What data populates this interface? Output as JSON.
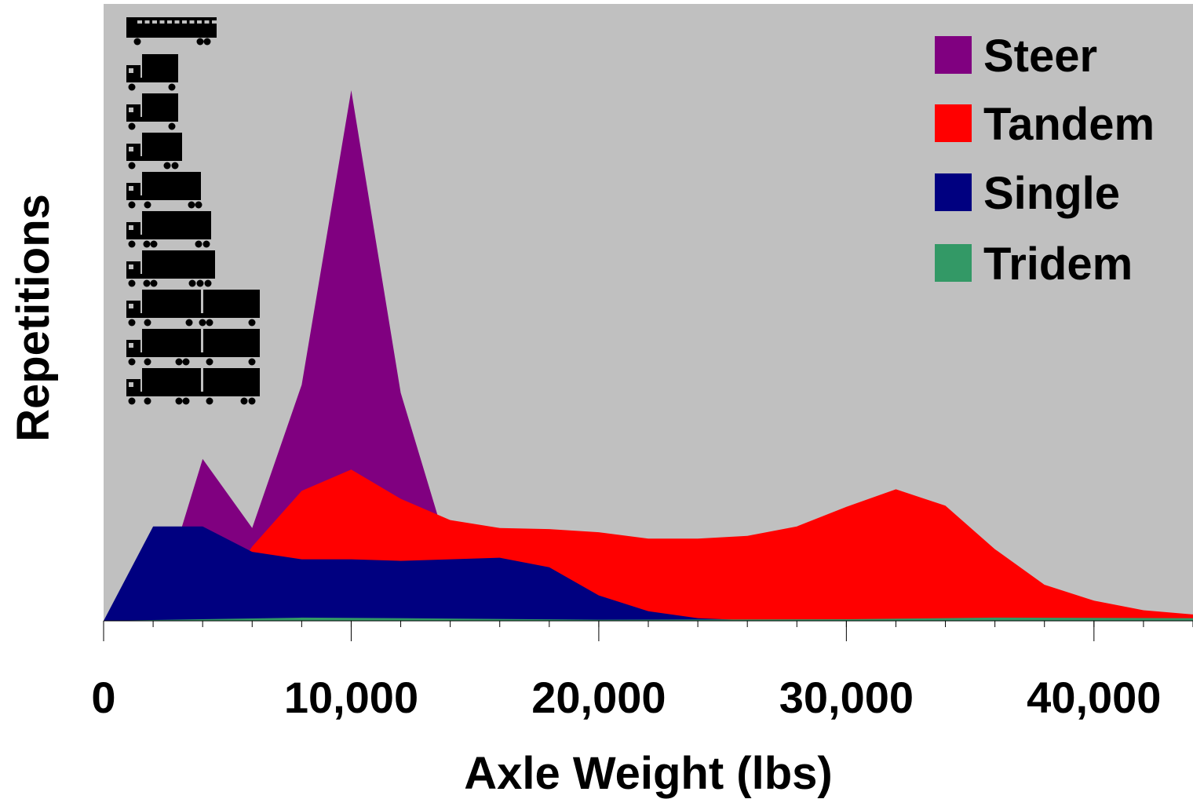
{
  "chart_data": {
    "type": "area",
    "title": "",
    "xlabel": "Axle Weight (lbs)",
    "ylabel": "Repetitions",
    "xlim": [
      0,
      44000
    ],
    "ylim": [
      0,
      100
    ],
    "x_ticks": [
      0,
      10000,
      20000,
      30000,
      40000
    ],
    "x_tick_labels": [
      "0",
      "10,000",
      "20,000",
      "30,000",
      "40,000"
    ],
    "y_axis_tick_labels_shown": false,
    "grid": false,
    "plot_background": "#c0c0c0",
    "legend": {
      "position": "top-right",
      "entries": [
        "Steer",
        "Tandem",
        "Single",
        "Tridem"
      ]
    },
    "vehicle_class_icons": [
      "bus-icon",
      "two-axle-truck-icon",
      "two-axle-truck-icon",
      "three-axle-truck-icon",
      "tractor-trailer-icon",
      "tractor-trailer-icon",
      "tractor-trailer-icon",
      "double-trailer-icon",
      "double-trailer-icon",
      "double-trailer-icon"
    ],
    "series": [
      {
        "name": "Steer",
        "color": "#800080",
        "points": [
          [
            2000,
            0
          ],
          [
            4000,
            30.5
          ],
          [
            6000,
            17.5
          ],
          [
            8000,
            44.5
          ],
          [
            10000,
            100
          ],
          [
            12000,
            43
          ],
          [
            14000,
            12
          ],
          [
            16000,
            3
          ],
          [
            18000,
            0
          ]
        ]
      },
      {
        "name": "Tandem",
        "color": "#ff0000",
        "points": [
          [
            4000,
            0
          ],
          [
            6000,
            14
          ],
          [
            8000,
            24.5
          ],
          [
            10000,
            28.5
          ],
          [
            12000,
            23
          ],
          [
            14000,
            19
          ],
          [
            16000,
            17.5
          ],
          [
            18000,
            17.3
          ],
          [
            20000,
            16.7
          ],
          [
            22000,
            15.5
          ],
          [
            24000,
            15.5
          ],
          [
            26000,
            16
          ],
          [
            28000,
            17.8
          ],
          [
            30000,
            21.5
          ],
          [
            32000,
            24.8
          ],
          [
            34000,
            21.7
          ],
          [
            36000,
            13.5
          ],
          [
            38000,
            6.8
          ],
          [
            40000,
            3.8
          ],
          [
            42000,
            2
          ],
          [
            44000,
            1.2
          ]
        ]
      },
      {
        "name": "Single",
        "color": "#000080",
        "points": [
          [
            0,
            0
          ],
          [
            2000,
            17.8
          ],
          [
            4000,
            17.8
          ],
          [
            6000,
            13
          ],
          [
            8000,
            11.6
          ],
          [
            10000,
            11.6
          ],
          [
            12000,
            11.3
          ],
          [
            14000,
            11.6
          ],
          [
            16000,
            11.9
          ],
          [
            18000,
            10.1
          ],
          [
            20000,
            4.8
          ],
          [
            22000,
            1.8
          ],
          [
            24000,
            0.5
          ],
          [
            26000,
            0.1
          ],
          [
            28000,
            0
          ]
        ]
      },
      {
        "name": "Tridem",
        "color": "#339966",
        "points": [
          [
            0,
            0
          ],
          [
            8000,
            0.6
          ],
          [
            12000,
            0.5
          ],
          [
            20000,
            0.2
          ],
          [
            30000,
            0.3
          ],
          [
            36000,
            0.6
          ],
          [
            44000,
            0.5
          ]
        ]
      }
    ]
  }
}
